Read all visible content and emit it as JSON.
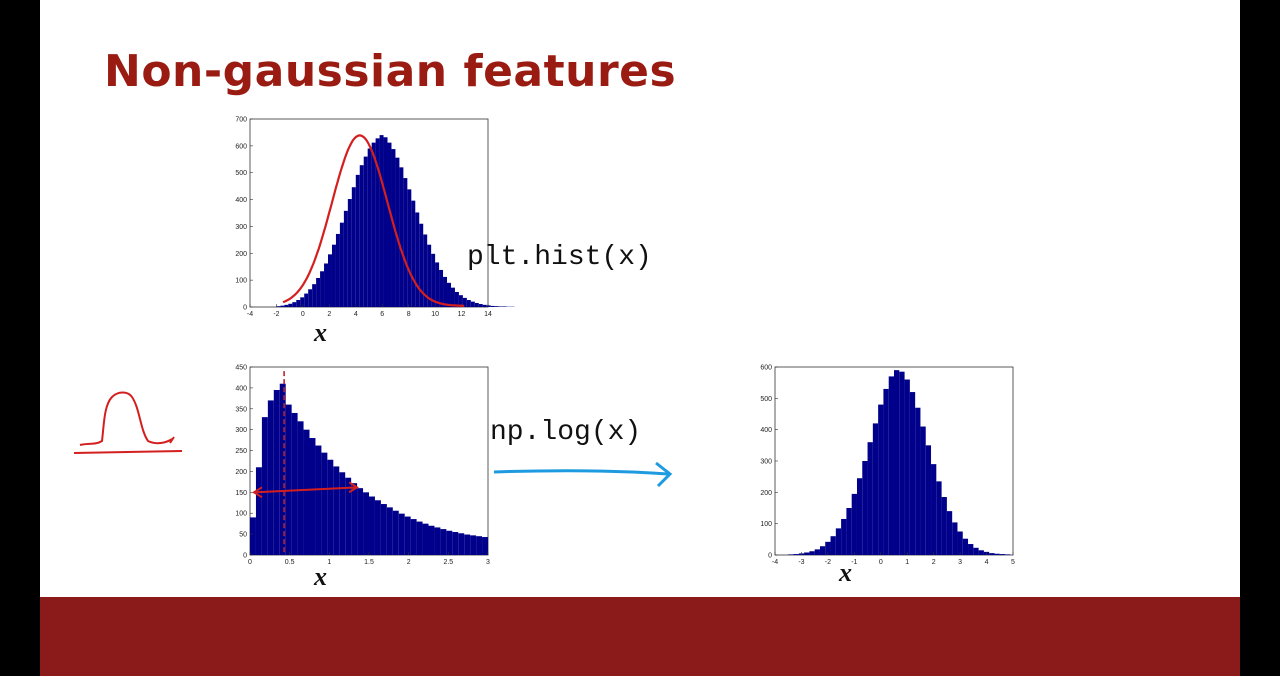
{
  "slide": {
    "title": "Non-gaussian features",
    "code_hist": "plt.hist(x)",
    "code_log": "np.log(x)"
  },
  "colors": {
    "title": "#9a1b12",
    "bar_fill": "#00008b",
    "footer": "#8b1a1a",
    "annotation_red": "#d41f1f",
    "arrow_blue": "#1e9be0"
  },
  "chart_data": [
    {
      "type": "bar",
      "name": "top-histogram",
      "xlabel": "x",
      "xlim": [
        -4,
        14
      ],
      "ylim": [
        0,
        700
      ],
      "xticks": [
        -4,
        -2,
        0,
        2,
        4,
        6,
        8,
        10,
        12,
        14
      ],
      "yticks": [
        0,
        100,
        200,
        300,
        400,
        500,
        600,
        700
      ],
      "bin_start": -2,
      "bin_width": 0.3,
      "values": [
        3,
        5,
        8,
        12,
        18,
        26,
        36,
        50,
        66,
        85,
        108,
        133,
        162,
        196,
        232,
        272,
        314,
        358,
        402,
        446,
        492,
        528,
        560,
        590,
        612,
        628,
        640,
        632,
        612,
        588,
        556,
        520,
        480,
        438,
        396,
        352,
        310,
        270,
        232,
        198,
        166,
        138,
        112,
        90,
        72,
        56,
        44,
        34,
        26,
        20,
        15,
        11,
        8,
        6,
        4,
        3,
        2,
        2,
        1,
        1
      ]
    },
    {
      "type": "bar",
      "name": "skewed-histogram",
      "xlabel": "x",
      "xlim": [
        0,
        3
      ],
      "ylim": [
        0,
        450
      ],
      "xticks": [
        0,
        0.5,
        1,
        1.5,
        2,
        2.5,
        3
      ],
      "yticks": [
        0,
        50,
        100,
        150,
        200,
        250,
        300,
        350,
        400,
        450
      ],
      "bin_start": 0,
      "bin_width": 0.075,
      "values": [
        90,
        210,
        330,
        370,
        395,
        410,
        360,
        340,
        320,
        300,
        280,
        262,
        245,
        228,
        212,
        198,
        185,
        172,
        160,
        150,
        140,
        131,
        122,
        114,
        106,
        99,
        92,
        86,
        80,
        75,
        70,
        66,
        62,
        58,
        55,
        52,
        49,
        47,
        45,
        43
      ]
    },
    {
      "type": "bar",
      "name": "log-histogram",
      "xlabel": "x",
      "xlim": [
        -4,
        5
      ],
      "ylim": [
        0,
        600
      ],
      "xticks": [
        -4,
        -3,
        -2,
        -1,
        0,
        1,
        2,
        3,
        4,
        5
      ],
      "yticks": [
        0,
        100,
        200,
        300,
        400,
        500,
        600
      ],
      "bin_start": -3.5,
      "bin_width": 0.2,
      "values": [
        2,
        3,
        5,
        8,
        12,
        18,
        28,
        42,
        60,
        85,
        115,
        150,
        195,
        245,
        300,
        360,
        420,
        480,
        530,
        570,
        590,
        585,
        560,
        520,
        470,
        410,
        350,
        290,
        235,
        185,
        140,
        104,
        75,
        52,
        35,
        23,
        15,
        10,
        6,
        4,
        3,
        2
      ]
    }
  ]
}
